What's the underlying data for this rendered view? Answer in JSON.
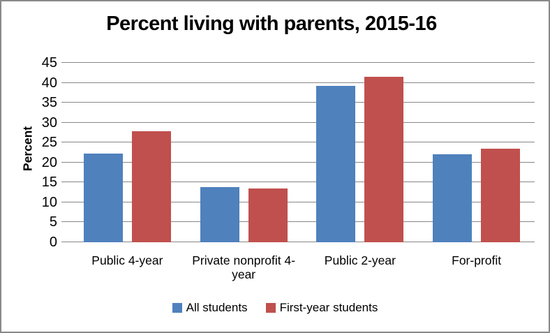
{
  "figure": {
    "background": "#FFFFFF",
    "border_color": "#898989"
  },
  "chart_data": {
    "type": "bar",
    "title": "Percent living with parents, 2015-16",
    "xlabel": "",
    "ylabel": "Percent",
    "categories": [
      "Public 4-year",
      "Private nonprofit 4-year",
      "Public 2-year",
      "For-profit"
    ],
    "series": [
      {
        "name": "All students",
        "color": "#4F81BD",
        "values": [
          22.2,
          13.7,
          39.0,
          21.9
        ]
      },
      {
        "name": "First-year students",
        "color": "#C0504D",
        "values": [
          27.7,
          13.4,
          41.3,
          23.4
        ]
      }
    ],
    "ylim": [
      0,
      45
    ],
    "ytick_step": 5,
    "grid": true,
    "gridline_color": "#878787",
    "axis_text_color": "#000000",
    "legend_position": "bottom"
  }
}
